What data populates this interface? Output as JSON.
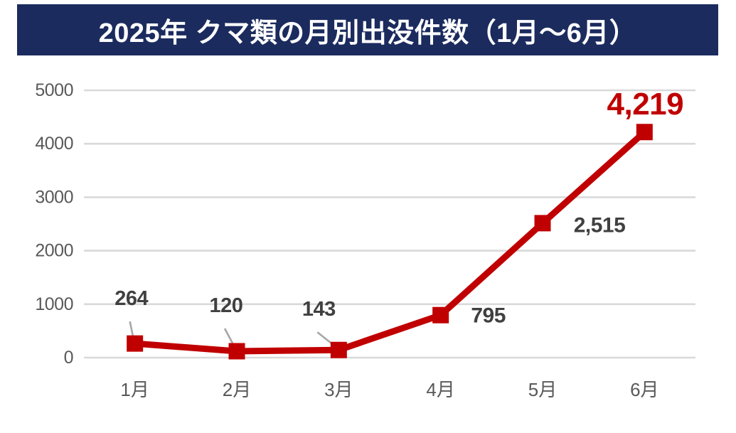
{
  "header": {
    "title": "2025年 クマ類の月別出没件数（1月～6月）"
  },
  "colors": {
    "banner_bg": "#1B2B5E",
    "banner_text": "#FFFFFF",
    "series_line": "#C00000",
    "marker": "#C00000",
    "gridline": "#D9D9D9",
    "axis_tick_label": "#595959",
    "data_label": "#404040",
    "highlight_label": "#C00000",
    "leader_line": "#A6A6A6",
    "background": "#FFFFFF"
  },
  "chart_data": {
    "type": "line",
    "title": "2025年 クマ類の月別出没件数（1月～6月）",
    "categories": [
      "1月",
      "2月",
      "3月",
      "4月",
      "5月",
      "6月"
    ],
    "values": [
      264,
      120,
      143,
      795,
      2515,
      4219
    ],
    "value_labels": [
      "264",
      "120",
      "143",
      "795",
      "2,515",
      "4,219"
    ],
    "highlight_index": 5,
    "xlabel": "",
    "ylabel": "",
    "ylim": [
      0,
      5000
    ],
    "yticks": [
      0,
      1000,
      2000,
      3000,
      4000,
      5000
    ],
    "ytick_labels": [
      "0",
      "1000",
      "2000",
      "3000",
      "4000",
      "5000"
    ],
    "grid": "horizontal",
    "legend": "none",
    "marker_shape": "square",
    "label_placements": [
      "above-leader",
      "above-leader",
      "above-leader",
      "right",
      "right",
      "above-highlight"
    ]
  }
}
